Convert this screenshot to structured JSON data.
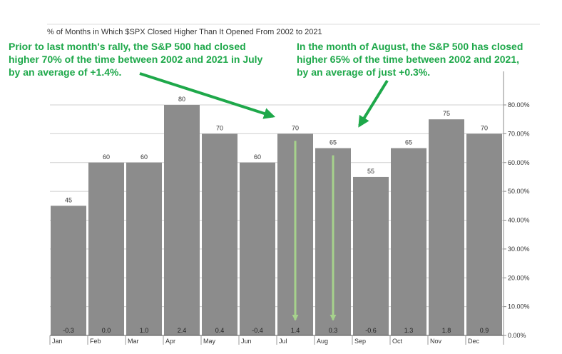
{
  "chart_data": {
    "type": "bar",
    "title": "% of Months in Which $SPX Closed Higher Than It Opened From 2002 to 2021",
    "categories": [
      "Jan",
      "Feb",
      "Mar",
      "Apr",
      "May",
      "Jun",
      "Jul",
      "Aug",
      "Sep",
      "Oct",
      "Nov",
      "Dec"
    ],
    "values": [
      45,
      60,
      60,
      80,
      70,
      60,
      70,
      65,
      55,
      65,
      75,
      70
    ],
    "value_labels": [
      "45",
      "60",
      "60",
      "80",
      "70",
      "60",
      "70",
      "65",
      "55",
      "65",
      "75",
      "70"
    ],
    "average_return_labels": [
      "-0.3",
      "0.0",
      "1.0",
      "2.4",
      "0.4",
      "-0.4",
      "1.4",
      "0.3",
      "-0.6",
      "1.3",
      "1.8",
      "0.9"
    ],
    "ylim": [
      0,
      80
    ],
    "yticks": [
      0,
      10,
      20,
      30,
      40,
      50,
      60,
      70,
      80
    ],
    "ytick_labels": [
      "0.00%",
      "10.00%",
      "20.00%",
      "30.00%",
      "40.00%",
      "50.00%",
      "60.00%",
      "70.00%",
      "80.00%"
    ],
    "y_axis_position": "right",
    "grid": true,
    "bar_color": "#8c8c8c",
    "annotation_color": "#1ea84a",
    "down_arrow_color": "#a6d28c",
    "annotations": [
      {
        "lines": [
          "Prior to last month's rally, the S&P 500 had closed",
          "higher 70% of the time between 2002 and 2021 in July",
          "by an average of +1.4%."
        ],
        "target": "Jul"
      },
      {
        "lines": [
          "In the month of August, the S&P 500 has closed",
          "higher 65% of the time between 2002 and 2021,",
          "by an average of just +0.3%."
        ],
        "target": "Aug"
      }
    ],
    "down_arrows": [
      "Jul",
      "Aug"
    ]
  }
}
